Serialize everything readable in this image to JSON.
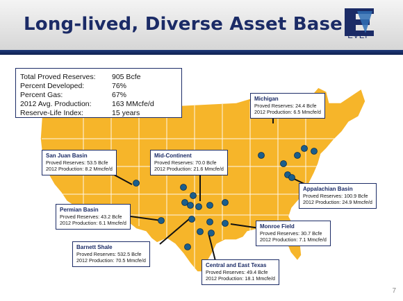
{
  "slide": {
    "title": "Long-lived, Diverse Asset Base",
    "logo_text": "EVEP",
    "page_number": "7"
  },
  "summary": {
    "rows": [
      {
        "label": "Total Proved Reserves:",
        "value": "905 Bcfe"
      },
      {
        "label": "Percent Developed:",
        "value": "76%"
      },
      {
        "label": "Percent Gas:",
        "value": "67%"
      },
      {
        "label": "2012 Avg. Production:",
        "value": "163  MMcfe/d"
      },
      {
        "label": "Reserve-Life Index:",
        "value": "15 years"
      }
    ]
  },
  "callouts": {
    "michigan": {
      "name": "Michigan",
      "reserves": "Proved Reserves: 24.4 Bcfe",
      "production": "2012 Production: 6.5 Mmcfe/d"
    },
    "san_juan": {
      "name": "San Juan Basin",
      "reserves": "Proved Reserves: 53.5 Bcfe",
      "production": "2012 Production: 8.2 Mmcfe/d"
    },
    "mid_continent": {
      "name": "Mid-Continent",
      "reserves": "Proved Reserves: 70.0 Bcfe",
      "production": "2012 Production: 21.6 Mmcfe/d"
    },
    "appalachian": {
      "name": "Appalachian Basin",
      "reserves": "Proved Reserves: 100.9 Bcfe",
      "production": "2012 Production: 24.9 Mmcfe/d"
    },
    "permian": {
      "name": "Permian Basin",
      "reserves": "Proved Reserves: 43.2 Bcfe",
      "production": "2012 Production: 6.1 Mmcfe/d"
    },
    "monroe": {
      "name": "Monroe Field",
      "reserves": "Proved Reserves: 30.7 Bcfe",
      "production": "2012 Production: 7.1 Mmcfe/d"
    },
    "barnett": {
      "name": "Barnett Shale",
      "reserves": "Proved Reserves: 532.5 Bcfe",
      "production": "2012 Production: 70.5 Mmcfe/d"
    },
    "east_texas": {
      "name": "Central and East Texas",
      "reserves": "Proved Reserves: 49.4 Bcfe",
      "production": "2012 Production: 18.1 Mmcfe/d"
    }
  },
  "colors": {
    "map_fill": "#f6b52a",
    "state_border": "#ffffff",
    "marker": "#1b5e8c",
    "title": "#1b2b66"
  }
}
